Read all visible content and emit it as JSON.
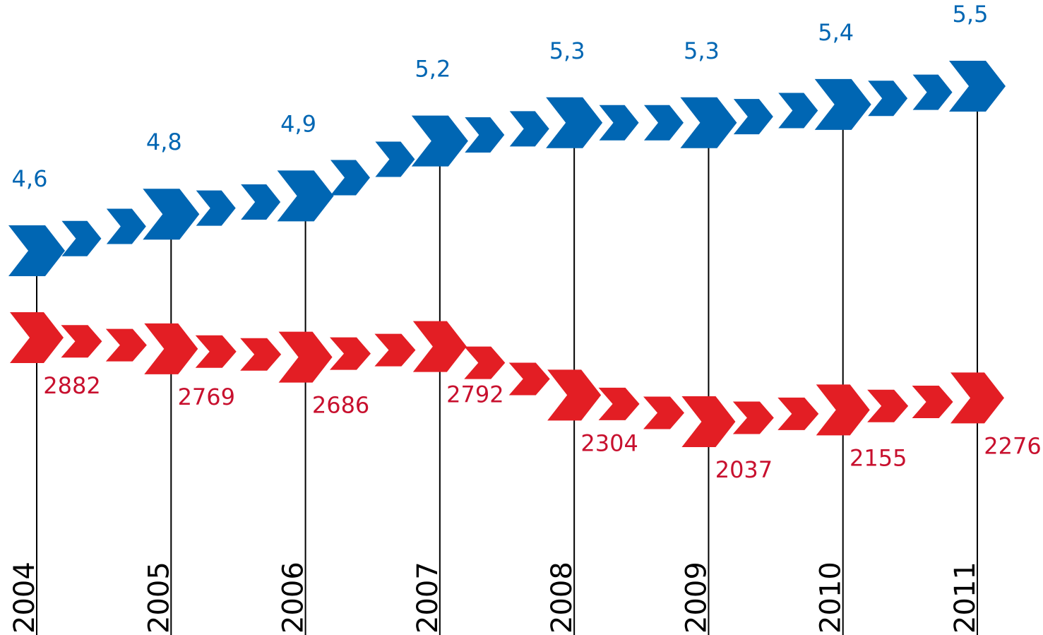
{
  "chart_data": {
    "type": "chevron",
    "categories": [
      "2004",
      "2005",
      "2006",
      "2007",
      "2008",
      "2009",
      "2010",
      "2011"
    ],
    "series": [
      {
        "color": "#0066b3",
        "label_color": "#0066b3",
        "values": [
          4.6,
          4.8,
          4.9,
          5.2,
          5.3,
          5.3,
          5.4,
          5.5
        ],
        "value_labels": [
          "4,6",
          "4,8",
          "4,9",
          "5,2",
          "5,3",
          "5,3",
          "5,4",
          "5,5"
        ]
      },
      {
        "color": "#e31e24",
        "label_color": "#c8102e",
        "values": [
          2882,
          2769,
          2686,
          2792,
          2304,
          2037,
          2155,
          2276
        ]
      }
    ]
  }
}
